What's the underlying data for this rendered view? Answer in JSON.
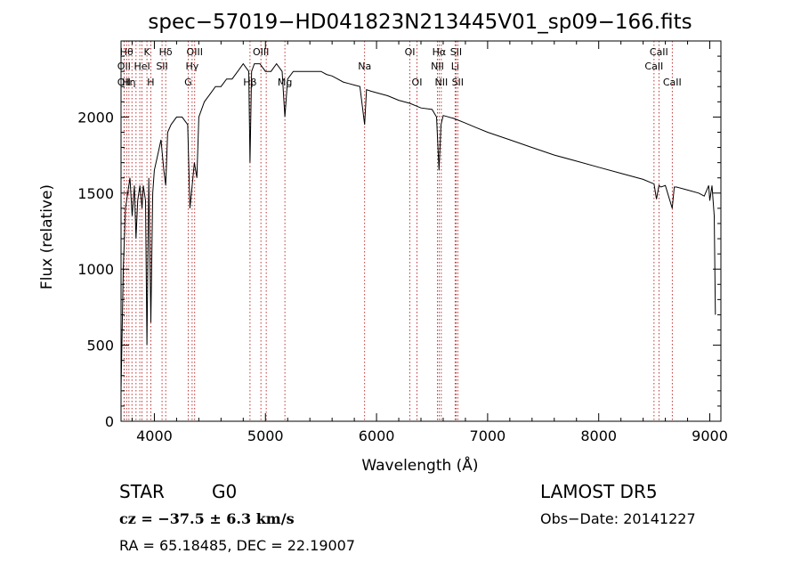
{
  "chart_data": {
    "type": "line",
    "title": "spec−57019−HD041823N213445V01_sp09−166.fits",
    "xlabel": "Wavelength (Å)",
    "ylabel": "Flux (relative)",
    "xlim": [
      3700,
      9100
    ],
    "ylim": [
      0,
      2500
    ],
    "x_ticks": [
      4000,
      5000,
      6000,
      7000,
      8000,
      9000
    ],
    "y_ticks": [
      0,
      500,
      1000,
      1500,
      2000
    ],
    "grid": false,
    "series": [
      {
        "x": [
          3700,
          3720,
          3740,
          3760,
          3780,
          3800,
          3820,
          3835,
          3850,
          3870,
          3889,
          3900,
          3920,
          3933,
          3950,
          3968,
          3985,
          4000,
          4030,
          4060,
          4085,
          4102,
          4120,
          4150,
          4200,
          4250,
          4300,
          4320,
          4340,
          4360,
          4383,
          4400,
          4450,
          4500,
          4550,
          4600,
          4650,
          4700,
          4750,
          4800,
          4850,
          4861,
          4875,
          4900,
          4950,
          5000,
          5050,
          5100,
          5150,
          5175,
          5200,
          5250,
          5300,
          5350,
          5400,
          5450,
          5500,
          5550,
          5600,
          5650,
          5700,
          5750,
          5800,
          5850,
          5893,
          5910,
          5950,
          6000,
          6100,
          6200,
          6300,
          6400,
          6500,
          6540,
          6563,
          6580,
          6600,
          6700,
          6800,
          6900,
          7000,
          7200,
          7400,
          7600,
          7800,
          8000,
          8200,
          8400,
          8498,
          8520,
          8542,
          8560,
          8600,
          8662,
          8680,
          8700,
          8800,
          8900,
          8950,
          8990,
          9000,
          9020,
          9040,
          9050
        ],
        "y": [
          200,
          1000,
          1400,
          1500,
          1600,
          1350,
          1550,
          1200,
          1450,
          1550,
          1400,
          1550,
          1450,
          500,
          1600,
          650,
          1500,
          1650,
          1750,
          1850,
          1650,
          1550,
          1900,
          1950,
          2000,
          2000,
          1950,
          1400,
          1550,
          1700,
          1600,
          2000,
          2100,
          2150,
          2200,
          2200,
          2250,
          2250,
          2300,
          2350,
          2300,
          1700,
          2300,
          2350,
          2350,
          2300,
          2300,
          2350,
          2300,
          2000,
          2250,
          2300,
          2300,
          2300,
          2300,
          2300,
          2300,
          2280,
          2270,
          2250,
          2230,
          2220,
          2210,
          2200,
          1950,
          2180,
          2170,
          2160,
          2140,
          2110,
          2090,
          2060,
          2050,
          2000,
          1650,
          1950,
          2010,
          1990,
          1960,
          1930,
          1900,
          1850,
          1800,
          1750,
          1710,
          1670,
          1630,
          1590,
          1560,
          1460,
          1550,
          1540,
          1550,
          1400,
          1540,
          1540,
          1520,
          1500,
          1480,
          1550,
          1450,
          1550,
          1350,
          700
        ]
      }
    ],
    "lines": [
      {
        "x": 3750,
        "label": "Hθ",
        "row": 1
      },
      {
        "x": 3727,
        "label": "OII",
        "row": 2
      },
      {
        "x": 3727,
        "label": "OII",
        "row": 3
      },
      {
        "x": 3771,
        "label": "Hη",
        "row": 3
      },
      {
        "x": 3798,
        "label": "",
        "row": 0
      },
      {
        "x": 3835,
        "label": "",
        "row": 0
      },
      {
        "x": 3869,
        "label": "",
        "row": 0
      },
      {
        "x": 3889,
        "label": "HeI",
        "row": 2
      },
      {
        "x": 3933,
        "label": "K",
        "row": 1
      },
      {
        "x": 3968,
        "label": "H",
        "row": 3
      },
      {
        "x": 4069,
        "label": "SII",
        "row": 2
      },
      {
        "x": 4102,
        "label": "Hδ",
        "row": 1
      },
      {
        "x": 4304,
        "label": "G",
        "row": 3
      },
      {
        "x": 4340,
        "label": "Hγ",
        "row": 2
      },
      {
        "x": 4363,
        "label": "OIII",
        "row": 1
      },
      {
        "x": 4861,
        "label": "Hβ",
        "row": 3
      },
      {
        "x": 4959,
        "label": "OIII",
        "row": 1
      },
      {
        "x": 5007,
        "label": "",
        "row": 0
      },
      {
        "x": 5175,
        "label": "Mg",
        "row": 3
      },
      {
        "x": 5893,
        "label": "Na",
        "row": 2
      },
      {
        "x": 6300,
        "label": "OI",
        "row": 1
      },
      {
        "x": 6364,
        "label": "OI",
        "row": 3
      },
      {
        "x": 6548,
        "label": "NII",
        "row": 2
      },
      {
        "x": 6563,
        "label": "Hα",
        "row": 1
      },
      {
        "x": 6583,
        "label": "NII",
        "row": 3
      },
      {
        "x": 6707,
        "label": "Li",
        "row": 2
      },
      {
        "x": 6716,
        "label": "SII",
        "row": 1
      },
      {
        "x": 6731,
        "label": "SII",
        "row": 3
      },
      {
        "x": 8498,
        "label": "CaII",
        "row": 2
      },
      {
        "x": 8542,
        "label": "CaII",
        "row": 1
      },
      {
        "x": 8662,
        "label": "CaII",
        "row": 3
      }
    ]
  },
  "info": {
    "class": "STAR",
    "subclass": "G0",
    "survey": "LAMOST DR5",
    "cz": "cz = −37.5 ± 6.3 km/s",
    "obs_date": "Obs−Date: 20141227",
    "coords": "RA =  65.18485, DEC =  22.19007"
  },
  "colors": {
    "line": "#000000",
    "marker": "#b00000",
    "background": "#ffffff"
  }
}
